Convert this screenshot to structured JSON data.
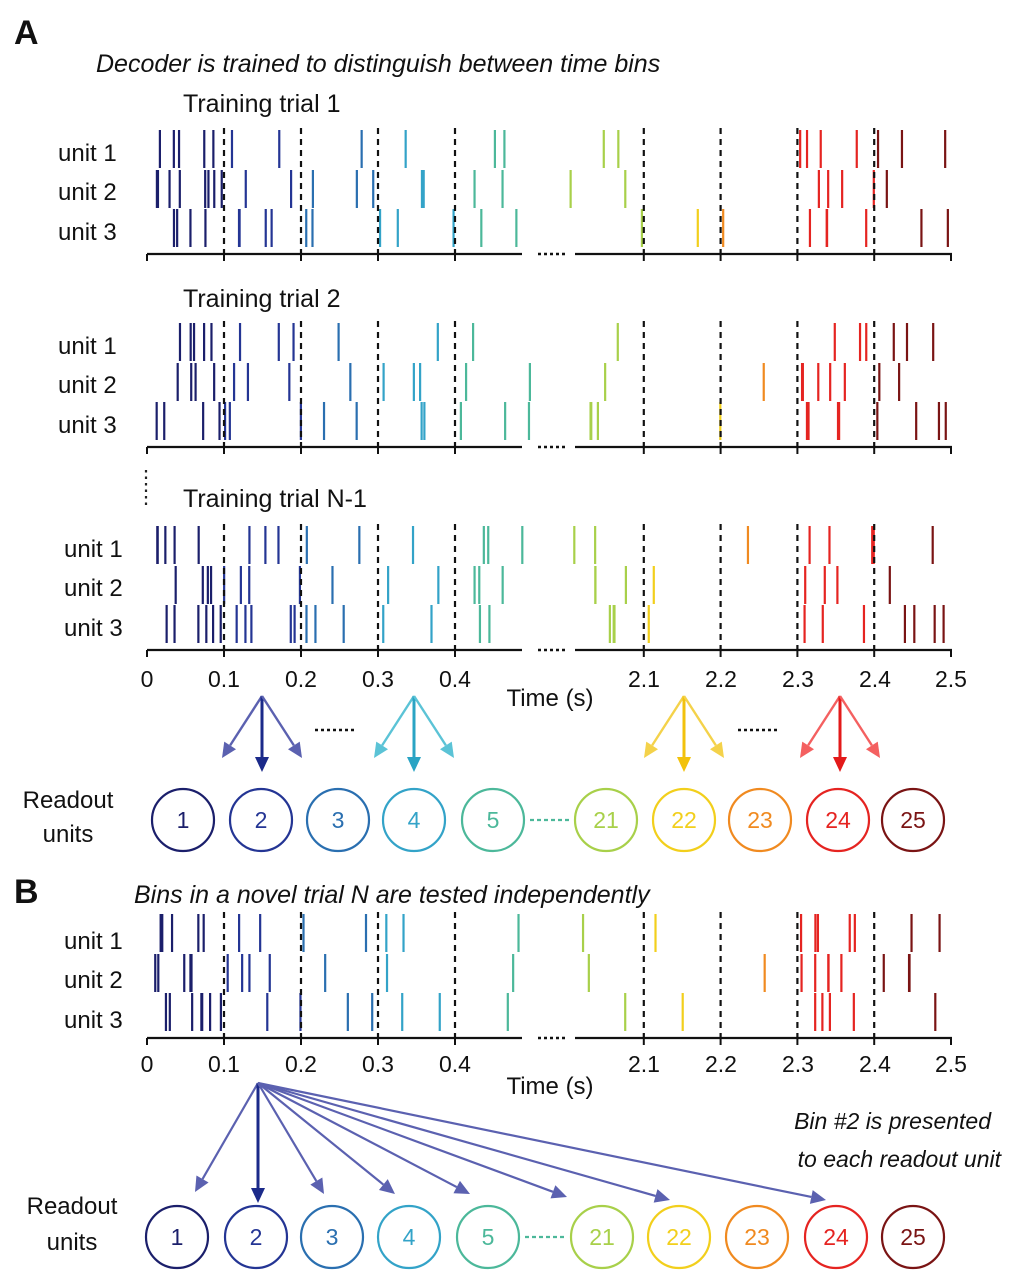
{
  "panel_a": {
    "letter": "A",
    "caption": "Decoder is trained to distinguish between time bins",
    "trials": [
      {
        "title": "Training trial 1"
      },
      {
        "title": "Training trial 2"
      },
      {
        "title": "Training trial N-1"
      }
    ],
    "unit_labels": [
      "unit 1",
      "unit 2",
      "unit 3"
    ],
    "readout_label": [
      "Readout",
      "units"
    ]
  },
  "panel_b": {
    "letter": "B",
    "caption": "Bins in a novel trial N are tested independently",
    "unit_labels": [
      "unit 1",
      "unit 2",
      "unit 3"
    ],
    "readout_label": [
      "Readout",
      "units"
    ],
    "note": [
      "Bin #2 is presented",
      "to each readout unit"
    ]
  },
  "axis": {
    "label": "Time (s)",
    "left_ticks": [
      "0",
      "0.1",
      "0.2",
      "0.3",
      "0.4"
    ],
    "right_ticks": [
      "2.1",
      "2.2",
      "2.3",
      "2.4",
      "2.5"
    ]
  },
  "readout_units": [
    "1",
    "2",
    "3",
    "4",
    "5",
    "21",
    "22",
    "23",
    "24",
    "25"
  ],
  "colors": {
    "bins": [
      "#1b1f6b",
      "#243594",
      "#2a6fb0",
      "#33a3c8",
      "#4cb89a",
      "#a8d04a",
      "#f2cf1c",
      "#f08a20",
      "#e52421",
      "#7a1414"
    ],
    "arrow_blue": "#5b61b0",
    "arrow_dark": "#1b2a8a",
    "arrow_cyan": "#5bc3d6",
    "arrow_cyan_dark": "#2aa4c4",
    "arrow_yellow": "#f4d24a",
    "arrow_yellow_dark": "#f2c20c",
    "arrow_red": "#f46060",
    "arrow_red_dark": "#e31a1a"
  }
}
